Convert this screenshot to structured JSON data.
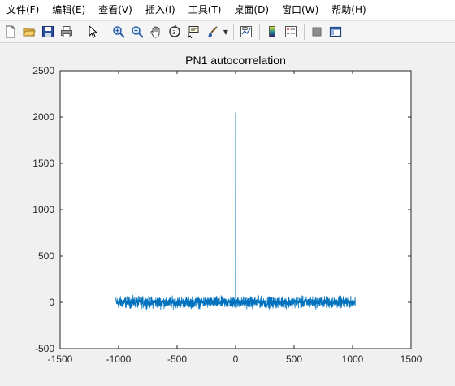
{
  "menu": {
    "items": [
      "文件(F)",
      "编辑(E)",
      "查看(V)",
      "插入(I)",
      "工具(T)",
      "桌面(D)",
      "窗口(W)",
      "帮助(H)"
    ]
  },
  "toolbar": {
    "icons": [
      "new-file-icon",
      "open-folder-icon",
      "save-icon",
      "print-icon",
      "pointer-icon",
      "zoom-in-icon",
      "zoom-out-icon",
      "pan-hand-icon",
      "rotate-3d-icon",
      "data-cursor-icon",
      "brush-icon",
      "link-plot-icon",
      "colorbar-icon",
      "legend-icon",
      "hide-plot-tools-icon",
      "show-plot-tools-icon"
    ]
  },
  "colors": {
    "line": "#0072bd",
    "axes_bg": "#ffffff",
    "figure_bg": "#f0f0f0"
  },
  "chart_data": {
    "type": "line",
    "title": "PN1 autocorrelation",
    "xlabel": "",
    "ylabel": "",
    "xlim": [
      -1500,
      1500
    ],
    "ylim": [
      -500,
      2500
    ],
    "x_ticks": [
      -1500,
      -1000,
      -500,
      0,
      500,
      1000,
      1500
    ],
    "y_ticks": [
      -500,
      0,
      500,
      1000,
      1500,
      2000,
      2500
    ],
    "x_tick_labels": [
      "-1500",
      "-1000",
      "-500",
      "0",
      "500",
      "1000",
      "1500"
    ],
    "y_tick_labels": [
      "-500",
      "0",
      "500",
      "1000",
      "1500",
      "2000",
      "2500"
    ],
    "grid": false,
    "series": [
      {
        "x_range": [
          -1023,
          1023
        ],
        "baseline": 0,
        "noise_amplitude": 100,
        "peak_x": 0,
        "peak_y": 2047
      }
    ]
  }
}
